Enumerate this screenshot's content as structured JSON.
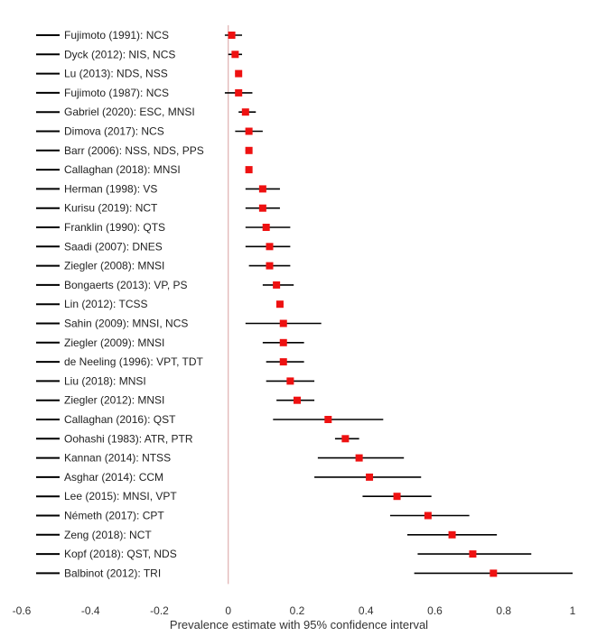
{
  "chart_data": {
    "type": "forest",
    "xlabel": "Prevalence estimate with 95% confidence interval",
    "xlim": [
      -0.6,
      1
    ],
    "xticks": [
      "-0.6",
      "-0.4",
      "-0.2",
      "0",
      "0.2",
      "0.4",
      "0.6",
      "0.8",
      "1"
    ],
    "marker_color": "#ee1111",
    "ci_color": "#000000",
    "reference_line_x": 0,
    "reference_line_color": "#d9a0a0",
    "studies": [
      {
        "label": "Fujimoto (1991): NCS",
        "estimate": 0.01,
        "lower": -0.01,
        "upper": 0.04
      },
      {
        "label": "Dyck (2012): NIS, NCS",
        "estimate": 0.02,
        "lower": 0.0,
        "upper": 0.04
      },
      {
        "label": "Lu (2013): NDS, NSS",
        "estimate": 0.03,
        "lower": 0.02,
        "upper": 0.04
      },
      {
        "label": "Fujimoto (1987): NCS",
        "estimate": 0.03,
        "lower": -0.01,
        "upper": 0.07
      },
      {
        "label": "Gabriel (2020): ESC, MNSI",
        "estimate": 0.05,
        "lower": 0.03,
        "upper": 0.08
      },
      {
        "label": "Dimova (2017): NCS",
        "estimate": 0.06,
        "lower": 0.02,
        "upper": 0.1
      },
      {
        "label": "Barr (2006): NSS, NDS, PPS",
        "estimate": 0.06,
        "lower": 0.05,
        "upper": 0.07
      },
      {
        "label": "Callaghan (2018): MNSI",
        "estimate": 0.06,
        "lower": 0.05,
        "upper": 0.07
      },
      {
        "label": "Herman (1998): VS",
        "estimate": 0.1,
        "lower": 0.05,
        "upper": 0.15
      },
      {
        "label": "Kurisu (2019): NCT",
        "estimate": 0.1,
        "lower": 0.05,
        "upper": 0.15
      },
      {
        "label": "Franklin (1990): QTS",
        "estimate": 0.11,
        "lower": 0.05,
        "upper": 0.18
      },
      {
        "label": "Saadi (2007): DNES",
        "estimate": 0.12,
        "lower": 0.05,
        "upper": 0.18
      },
      {
        "label": "Ziegler (2008): MNSI",
        "estimate": 0.12,
        "lower": 0.06,
        "upper": 0.18
      },
      {
        "label": "Bongaerts (2013): VP, PS",
        "estimate": 0.14,
        "lower": 0.1,
        "upper": 0.19
      },
      {
        "label": "Lin (2012): TCSS",
        "estimate": 0.15,
        "lower": 0.14,
        "upper": 0.16
      },
      {
        "label": "Sahin (2009): MNSI, NCS",
        "estimate": 0.16,
        "lower": 0.05,
        "upper": 0.27
      },
      {
        "label": "Ziegler (2009): MNSI",
        "estimate": 0.16,
        "lower": 0.1,
        "upper": 0.22
      },
      {
        "label": "de Neeling (1996): VPT, TDT",
        "estimate": 0.16,
        "lower": 0.11,
        "upper": 0.22
      },
      {
        "label": "Liu (2018): MNSI",
        "estimate": 0.18,
        "lower": 0.11,
        "upper": 0.25
      },
      {
        "label": "Ziegler (2012): MNSI",
        "estimate": 0.2,
        "lower": 0.14,
        "upper": 0.25
      },
      {
        "label": "Callaghan (2016): QST",
        "estimate": 0.29,
        "lower": 0.13,
        "upper": 0.45
      },
      {
        "label": "Oohashi (1983): ATR, PTR",
        "estimate": 0.34,
        "lower": 0.31,
        "upper": 0.38
      },
      {
        "label": "Kannan (2014): NTSS",
        "estimate": 0.38,
        "lower": 0.26,
        "upper": 0.51
      },
      {
        "label": "Asghar (2014): CCM",
        "estimate": 0.41,
        "lower": 0.25,
        "upper": 0.56
      },
      {
        "label": "Lee (2015): MNSI, VPT",
        "estimate": 0.49,
        "lower": 0.39,
        "upper": 0.59
      },
      {
        "label": "Németh (2017): CPT",
        "estimate": 0.58,
        "lower": 0.47,
        "upper": 0.7
      },
      {
        "label": "Zeng (2018): NCT",
        "estimate": 0.65,
        "lower": 0.52,
        "upper": 0.78
      },
      {
        "label": "Kopf (2018): QST, NDS",
        "estimate": 0.71,
        "lower": 0.55,
        "upper": 0.88
      },
      {
        "label": "Balbinot (2012): TRI",
        "estimate": 0.77,
        "lower": 0.54,
        "upper": 1.0
      }
    ]
  }
}
